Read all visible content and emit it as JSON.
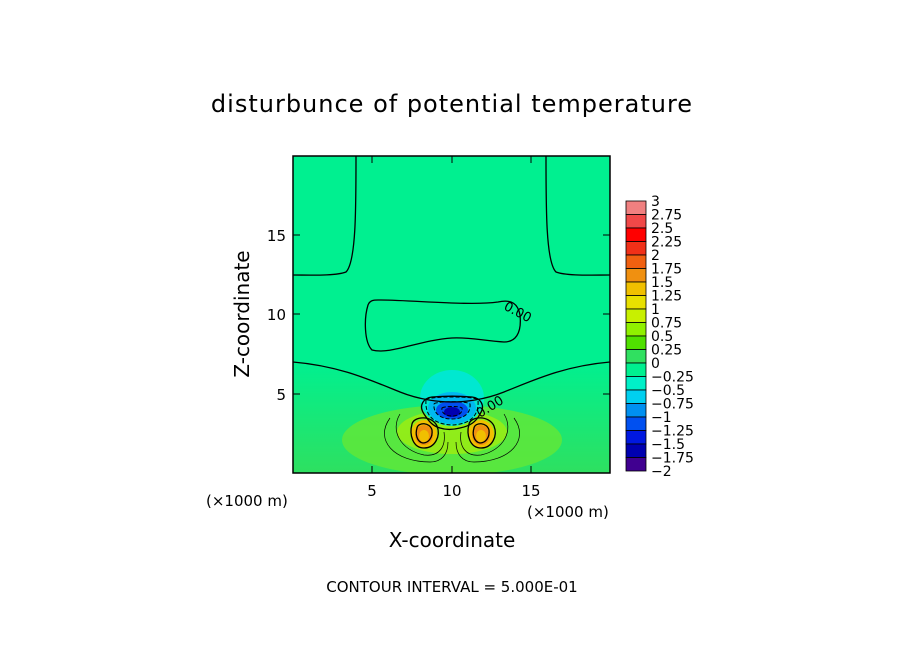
{
  "chart_data": {
    "type": "heatmap",
    "title": "disturbunce of potential temperature",
    "xlabel": "X-coordinate",
    "ylabel": "Z-coordinate",
    "x_unit": "(×1000 m)",
    "y_unit": "(×1000 m)",
    "xlim": [
      0,
      20
    ],
    "ylim": [
      0,
      20
    ],
    "xticks": [
      5,
      10,
      15
    ],
    "yticks": [
      5,
      10,
      15
    ],
    "contour_label": "0.00",
    "footer": "CONTOUR INTERVAL = 5.000E-01",
    "colorbar": {
      "min": -2,
      "max": 3,
      "labels": [
        "3",
        "2.75",
        "2.5",
        "2.25",
        "2",
        "1.75",
        "1.5",
        "1.25",
        "1",
        "0.75",
        "0.5",
        "0.25",
        "0",
        "−0.25",
        "−0.5",
        "−0.75",
        "−1",
        "−1.25",
        "−1.5",
        "−1.75",
        "−2"
      ],
      "colors": [
        "#f08080",
        "#f04848",
        "#ff0000",
        "#f03018",
        "#f06010",
        "#f09010",
        "#f0c000",
        "#e8e000",
        "#c8f000",
        "#90f000",
        "#50e000",
        "#30e060",
        "#00f090",
        "#00f0c8",
        "#00d0f0",
        "#0090f0",
        "#0050f0",
        "#0018e0",
        "#0000b0",
        "#400090"
      ]
    }
  }
}
